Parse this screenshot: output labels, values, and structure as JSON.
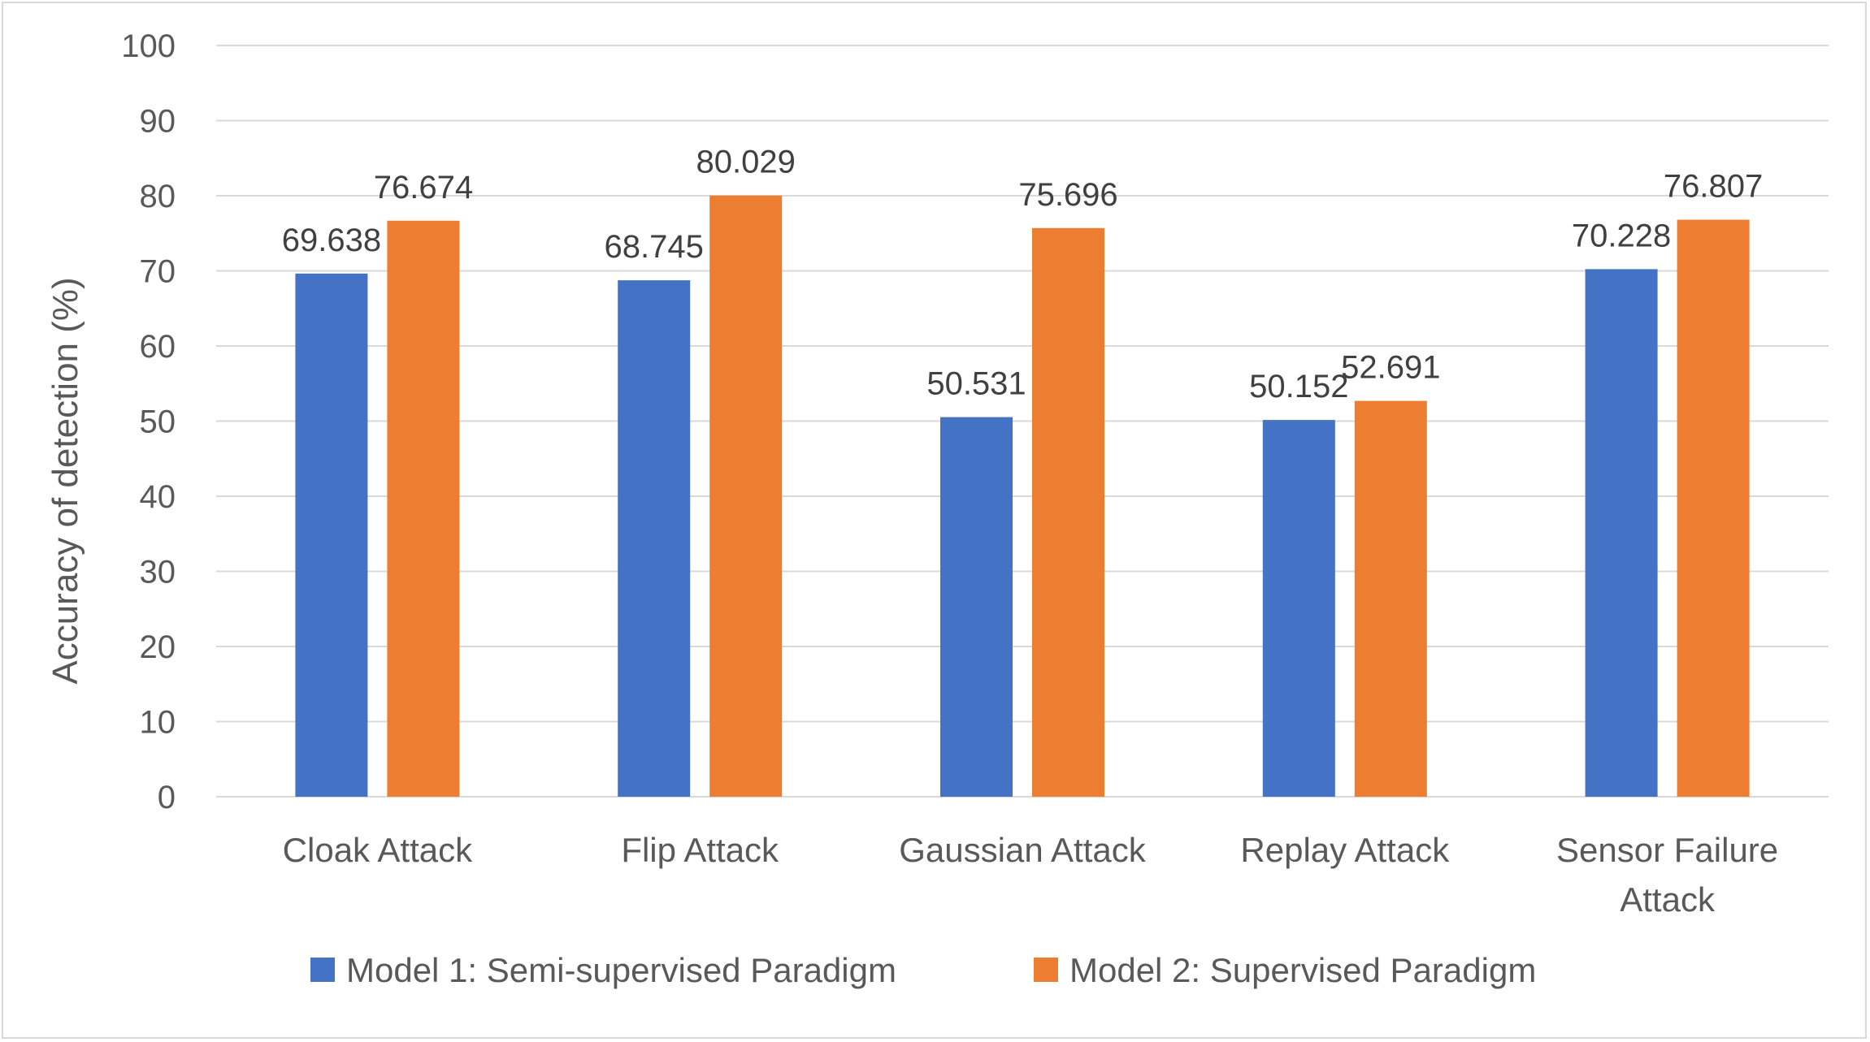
{
  "chart_data": {
    "type": "bar",
    "title": "",
    "xlabel": "",
    "ylabel": "Accuracy of detection (%)",
    "ylim": [
      0,
      100
    ],
    "yticks": [
      0,
      10,
      20,
      30,
      40,
      50,
      60,
      70,
      80,
      90,
      100
    ],
    "grid": true,
    "legend_position": "bottom",
    "categories": [
      [
        "Cloak Attack"
      ],
      [
        "Flip Attack"
      ],
      [
        "Gaussian Attack"
      ],
      [
        "Replay Attack"
      ],
      [
        "Sensor Failure",
        "Attack"
      ]
    ],
    "series": [
      {
        "name": "Model 1: Semi-supervised Paradigm",
        "color": "#4472c4",
        "values": [
          69.638,
          68.745,
          50.531,
          50.152,
          70.228
        ],
        "labels": [
          "69.638",
          "68.745",
          "50.531",
          "50.152",
          "70.228"
        ]
      },
      {
        "name": "Model 2: Supervised Paradigm",
        "color": "#ed7d31",
        "values": [
          76.674,
          80.029,
          75.696,
          52.691,
          76.807
        ],
        "labels": [
          "76.674",
          "80.029",
          "75.696",
          "52.691",
          "76.807"
        ]
      }
    ]
  }
}
